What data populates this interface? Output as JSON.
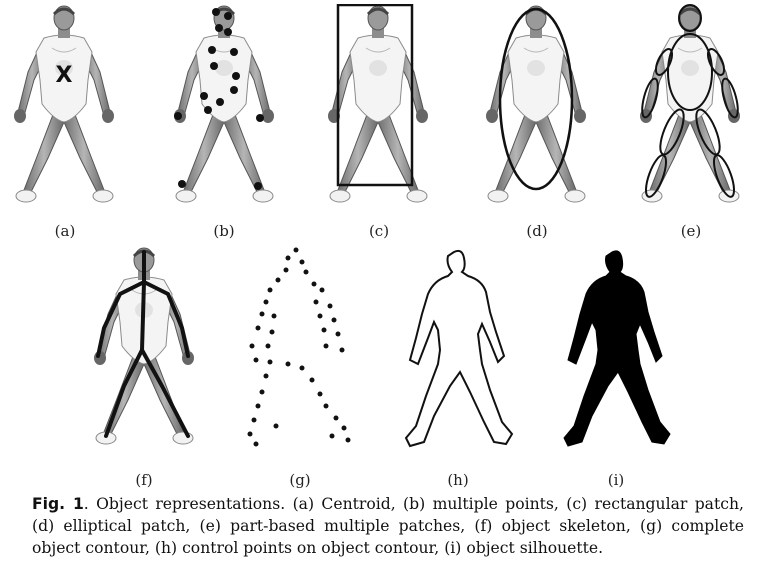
{
  "figure": {
    "panels": [
      {
        "id": "a",
        "label": "(a)"
      },
      {
        "id": "b",
        "label": "(b)"
      },
      {
        "id": "c",
        "label": "(c)"
      },
      {
        "id": "d",
        "label": "(d)"
      },
      {
        "id": "e",
        "label": "(e)"
      },
      {
        "id": "f",
        "label": "(f)"
      },
      {
        "id": "g",
        "label": "(g)"
      },
      {
        "id": "h",
        "label": "(h)"
      },
      {
        "id": "i",
        "label": "(i)"
      }
    ],
    "centroid_mark": "X",
    "caption": {
      "fig_label": "Fig. 1",
      "text": ".   Object representations. (a) Centroid, (b) multiple points, (c) rectangular patch, (d) elliptical patch, (e) part-based multiple patches, (f) object skeleton, (g) complete object contour, (h) control points on object contour, (i) object silhouette."
    }
  }
}
